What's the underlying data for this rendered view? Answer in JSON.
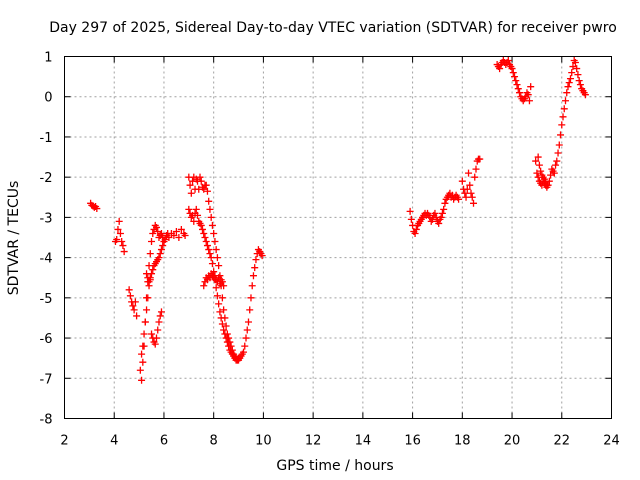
{
  "chart_data": {
    "type": "scatter",
    "title": "Day 297 of 2025, Sidereal Day-to-day VTEC variation (SDTVAR) for receiver pwro",
    "xlabel": "GPS time / hours",
    "ylabel": "SDTVAR / TECUs",
    "xlim": [
      2,
      24
    ],
    "ylim": [
      -8,
      1
    ],
    "xticks": [
      2,
      4,
      6,
      8,
      10,
      12,
      14,
      16,
      18,
      20,
      22,
      24
    ],
    "yticks": [
      -8,
      -7,
      -6,
      -5,
      -4,
      -3,
      -2,
      -1,
      0,
      1
    ],
    "grid": true,
    "marker": "+",
    "color": "#ff0000",
    "series": [
      {
        "name": "seg1",
        "x": [
          3.05,
          3.1,
          3.15,
          3.2,
          3.25,
          3.3
        ],
        "y": [
          -2.65,
          -2.7,
          -2.72,
          -2.75,
          -2.73,
          -2.78
        ]
      },
      {
        "name": "seg2",
        "x": [
          4.05,
          4.1,
          4.15,
          4.2,
          4.25,
          4.3,
          4.35,
          4.4
        ],
        "y": [
          -3.6,
          -3.55,
          -3.3,
          -3.1,
          -3.4,
          -3.6,
          -3.7,
          -3.85
        ]
      },
      {
        "name": "seg3",
        "x": [
          4.6,
          4.65,
          4.7,
          4.75,
          4.8,
          4.85,
          4.9
        ],
        "y": [
          -4.8,
          -4.95,
          -5.1,
          -5.2,
          -5.3,
          -5.1,
          -5.45
        ]
      },
      {
        "name": "seg4",
        "x": [
          5.05,
          5.1,
          5.15,
          5.2,
          5.25,
          5.3,
          5.35,
          5.4,
          5.45,
          5.5,
          5.55,
          5.6,
          5.65,
          5.7,
          5.75,
          5.8,
          5.85,
          5.9,
          5.95,
          6.0,
          6.05,
          6.1,
          6.15,
          6.2,
          6.3,
          6.4,
          6.5,
          6.6,
          6.7,
          6.8,
          6.85
        ],
        "y": [
          -6.8,
          -7.05,
          -6.6,
          -6.2,
          -5.6,
          -5.0,
          -4.6,
          -4.2,
          -3.9,
          -3.6,
          -3.4,
          -3.3,
          -3.2,
          -3.25,
          -3.35,
          -3.5,
          -3.45,
          -3.4,
          -3.5,
          -3.6,
          -3.55,
          -3.45,
          -3.4,
          -3.5,
          -3.4,
          -3.45,
          -3.35,
          -3.5,
          -3.3,
          -3.4,
          -3.45
        ]
      },
      {
        "name": "seg5",
        "x": [
          5.1,
          5.15,
          5.2,
          5.25,
          5.3,
          5.35,
          5.4,
          5.45,
          5.5,
          5.55,
          5.6,
          5.65,
          5.7,
          5.75,
          5.8,
          5.85,
          5.9,
          5.95,
          6.0
        ],
        "y": [
          -6.4,
          -6.2,
          -5.9,
          -5.6,
          -5.3,
          -5.0,
          -4.7,
          -4.5,
          -4.4,
          -4.3,
          -4.2,
          -4.15,
          -4.1,
          -4.05,
          -4.0,
          -3.9,
          -3.8,
          -3.7,
          -3.6
        ]
      },
      {
        "name": "seg6",
        "x": [
          5.3,
          5.35,
          5.4,
          5.45,
          5.5,
          5.55,
          5.6,
          5.65,
          5.7,
          5.75,
          5.8,
          5.85,
          5.9
        ],
        "y": [
          -4.4,
          -4.5,
          -4.6,
          -4.55,
          -5.9,
          -6.0,
          -6.1,
          -6.15,
          -6.0,
          -5.8,
          -5.6,
          -5.45,
          -5.35
        ]
      },
      {
        "name": "seg7",
        "x": [
          7.0,
          7.05,
          7.1,
          7.15,
          7.2,
          7.25,
          7.3,
          7.35,
          7.4,
          7.45,
          7.5,
          7.55,
          7.6,
          7.65,
          7.7,
          7.75,
          7.8,
          7.85,
          7.9,
          7.95,
          8.0,
          8.05,
          8.1,
          8.15,
          8.2,
          8.25,
          8.3,
          8.35,
          8.4,
          8.45,
          8.5,
          8.55,
          8.6,
          8.65,
          8.7,
          8.75,
          8.8,
          8.85,
          8.9,
          8.95,
          9.0,
          9.05,
          9.1,
          9.15,
          9.2,
          9.25,
          9.3,
          9.35,
          9.4,
          9.45,
          9.5,
          9.55,
          9.6,
          9.65,
          9.7,
          9.75,
          9.8,
          9.85,
          9.9,
          9.95
        ],
        "y": [
          -2.0,
          -2.2,
          -2.4,
          -2.1,
          -2.0,
          -2.3,
          -2.05,
          -2.1,
          -2.3,
          -2.0,
          -2.1,
          -2.25,
          -2.3,
          -2.2,
          -2.2,
          -2.35,
          -2.6,
          -2.8,
          -3.0,
          -3.2,
          -3.4,
          -3.6,
          -3.8,
          -4.0,
          -4.2,
          -4.45,
          -4.7,
          -5.0,
          -5.3,
          -5.5,
          -5.7,
          -5.9,
          -6.0,
          -6.1,
          -6.2,
          -6.3,
          -6.4,
          -6.45,
          -6.5,
          -6.55,
          -6.55,
          -6.5,
          -6.45,
          -6.4,
          -6.35,
          -6.2,
          -6.0,
          -5.8,
          -5.6,
          -5.3,
          -5.0,
          -4.7,
          -4.45,
          -4.25,
          -4.05,
          -3.9,
          -3.8,
          -3.85,
          -3.9,
          -3.95
        ]
      },
      {
        "name": "seg8",
        "x": [
          7.0,
          7.05,
          7.1,
          7.15,
          7.2,
          7.25,
          7.3,
          7.35,
          7.4,
          7.45,
          7.5,
          7.55,
          7.6,
          7.65,
          7.7,
          7.75,
          7.8,
          7.85,
          7.9,
          7.95,
          8.0,
          8.05,
          8.1,
          8.15,
          8.2,
          8.25,
          8.3,
          8.35,
          8.4,
          8.45,
          8.5,
          8.55,
          8.6,
          8.65,
          8.7,
          8.75,
          8.8,
          8.85,
          8.9,
          8.95,
          9.0
        ],
        "y": [
          -2.8,
          -2.9,
          -3.0,
          -2.95,
          -3.1,
          -2.9,
          -2.8,
          -2.95,
          -3.1,
          -3.15,
          -3.2,
          -3.3,
          -3.4,
          -3.5,
          -3.6,
          -3.7,
          -3.8,
          -3.9,
          -4.0,
          -4.15,
          -4.35,
          -4.55,
          -4.75,
          -4.95,
          -5.15,
          -5.35,
          -5.5,
          -5.65,
          -5.8,
          -5.9,
          -6.0,
          -6.1,
          -6.2,
          -6.3,
          -6.35,
          -6.4,
          -6.45,
          -6.5,
          -6.55,
          -6.55,
          -6.5
        ]
      },
      {
        "name": "seg9",
        "x": [
          7.6,
          7.65,
          7.7,
          7.75,
          7.8,
          7.85,
          7.9,
          7.95,
          8.0,
          8.05,
          8.1,
          8.15,
          8.2,
          8.25,
          8.3,
          8.35,
          8.4
        ],
        "y": [
          -4.7,
          -4.6,
          -4.5,
          -4.55,
          -4.45,
          -4.5,
          -4.4,
          -4.45,
          -4.5,
          -4.45,
          -4.55,
          -4.6,
          -4.5,
          -4.65,
          -4.55,
          -4.6,
          -4.7
        ]
      },
      {
        "name": "seg10",
        "x": [
          15.9,
          15.95,
          16.0,
          16.05,
          16.1,
          16.15,
          16.2,
          16.25,
          16.3,
          16.35,
          16.4,
          16.45,
          16.5,
          16.55,
          16.6,
          16.65,
          16.7,
          16.75,
          16.8,
          16.85,
          16.9,
          16.95,
          17.0,
          17.05,
          17.1,
          17.15,
          17.2,
          17.25,
          17.3,
          17.35,
          17.4,
          17.45,
          17.5,
          17.55,
          17.6,
          17.65,
          17.7,
          17.75,
          17.8,
          17.85
        ],
        "y": [
          -2.85,
          -3.05,
          -3.2,
          -3.35,
          -3.4,
          -3.3,
          -3.2,
          -3.15,
          -3.1,
          -3.05,
          -3.0,
          -2.95,
          -2.9,
          -2.95,
          -2.9,
          -2.95,
          -3.0,
          -3.1,
          -3.05,
          -2.95,
          -2.9,
          -3.0,
          -3.1,
          -3.15,
          -3.05,
          -3.0,
          -2.9,
          -2.8,
          -2.65,
          -2.55,
          -2.5,
          -2.45,
          -2.4,
          -2.5,
          -2.45,
          -2.55,
          -2.5,
          -2.45,
          -2.5,
          -2.55
        ]
      },
      {
        "name": "seg11",
        "x": [
          18.0,
          18.05,
          18.1,
          18.15,
          18.2,
          18.25,
          18.3,
          18.35,
          18.4,
          18.45,
          18.5,
          18.55,
          18.6,
          18.65,
          18.7
        ],
        "y": [
          -2.1,
          -2.3,
          -2.4,
          -2.5,
          -2.3,
          -1.9,
          -2.2,
          -2.4,
          -2.5,
          -2.65,
          -2.0,
          -1.8,
          -1.6,
          -1.55,
          -1.55
        ]
      },
      {
        "name": "seg12",
        "x": [
          19.4,
          19.45,
          19.5,
          19.55,
          19.6,
          19.65,
          19.7,
          19.75,
          19.8,
          19.85,
          19.9,
          19.95,
          20.0,
          20.05,
          20.1,
          20.15,
          20.2,
          20.25,
          20.3,
          20.35,
          20.4,
          20.45,
          20.5,
          20.55,
          20.6,
          20.65,
          20.7,
          20.75
        ],
        "y": [
          0.8,
          0.75,
          0.7,
          0.8,
          0.85,
          0.9,
          0.85,
          0.8,
          0.85,
          0.9,
          0.8,
          0.75,
          0.7,
          0.6,
          0.5,
          0.4,
          0.3,
          0.2,
          0.1,
          0.0,
          -0.05,
          -0.1,
          -0.05,
          0.0,
          0.1,
          0.05,
          -0.1,
          0.25
        ]
      },
      {
        "name": "seg13",
        "x": [
          20.95,
          21.0,
          21.05,
          21.1,
          21.15,
          21.2,
          21.25,
          21.3,
          21.35,
          21.4,
          21.45,
          21.5,
          21.55,
          21.6,
          21.65,
          21.7,
          21.75,
          21.8,
          21.85,
          21.9,
          21.95,
          22.0,
          22.05,
          22.1,
          22.15,
          22.2,
          22.25,
          22.3,
          22.35,
          22.4,
          22.45,
          22.5,
          22.55,
          22.6,
          22.65,
          22.7,
          22.75,
          22.8,
          22.85,
          22.9,
          22.95
        ],
        "y": [
          -1.6,
          -1.9,
          -2.0,
          -2.1,
          -2.15,
          -2.2,
          -2.1,
          -2.15,
          -2.2,
          -2.25,
          -2.2,
          -2.1,
          -1.95,
          -1.8,
          -1.85,
          -1.9,
          -1.7,
          -1.6,
          -1.4,
          -1.2,
          -0.95,
          -0.7,
          -0.5,
          -0.3,
          -0.1,
          0.1,
          0.25,
          0.35,
          0.45,
          0.6,
          0.75,
          0.9,
          0.85,
          0.7,
          0.55,
          0.4,
          0.3,
          0.2,
          0.15,
          0.1,
          0.05
        ]
      },
      {
        "name": "seg14",
        "x": [
          21.05,
          21.1,
          21.15,
          21.2,
          21.25,
          21.3,
          21.35,
          21.4
        ],
        "y": [
          -1.5,
          -1.7,
          -1.85,
          -1.95,
          -2.0,
          -2.05,
          -2.1,
          -2.2
        ]
      }
    ]
  }
}
